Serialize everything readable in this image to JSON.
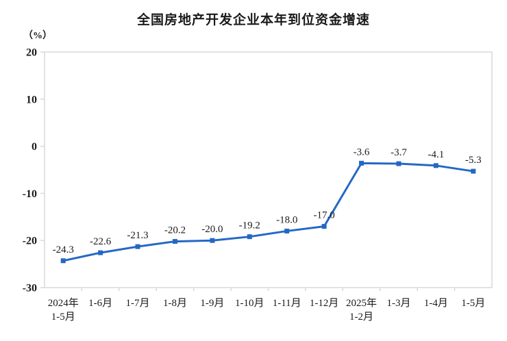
{
  "header": {
    "title": "全国房地产开发企业本年到位资金增速",
    "unit_label": "（%）"
  },
  "chart_data": {
    "type": "line",
    "title": "全国房地产开发企业本年到位资金增速",
    "unit": "（%）",
    "categories": [
      "2024年\n1-5月",
      "1-6月",
      "1-7月",
      "1-8月",
      "1-9月",
      "1-10月",
      "1-11月",
      "1-12月",
      "2025年\n1-2月",
      "1-3月",
      "1-4月",
      "1-5月"
    ],
    "values": [
      -24.3,
      -22.6,
      -21.3,
      -20.2,
      -20.0,
      -19.2,
      -18.0,
      -17.0,
      -3.6,
      -3.7,
      -4.1,
      -5.3
    ],
    "point_labels": [
      "-24.3",
      "-22.6",
      "-21.3",
      "-20.2",
      "-20.0",
      "-19.2",
      "-18.0",
      "-17.0",
      "-3.6",
      "-3.7",
      "-4.1",
      "-5.3"
    ],
    "ylim": [
      -30,
      20
    ],
    "yticks": [
      20,
      10,
      0,
      -10,
      -20,
      -30
    ],
    "grid": false,
    "legend": "none",
    "colors": {
      "line": "#2468C4",
      "marker": "#2468C4",
      "axis": "#d9d9d9",
      "text": "#1a1a1a",
      "background": "#ffffff"
    }
  }
}
